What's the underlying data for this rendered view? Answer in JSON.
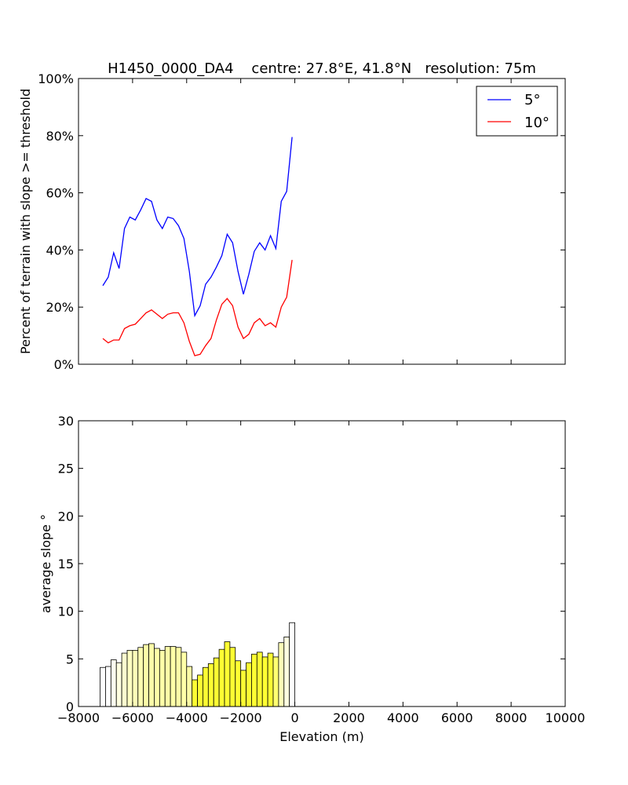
{
  "chart_data": [
    {
      "type": "line",
      "title": "H1450_0000_DA4    centre: 27.8°E, 41.8°N   resolution: 75m",
      "ylabel": "Percent of terrain with slope >= threshold",
      "xlim": [
        -8000,
        10000
      ],
      "ylim": [
        0,
        100
      ],
      "y_tick_labels": [
        "0%",
        "20%",
        "40%",
        "60%",
        "80%",
        "100%"
      ],
      "x_ticks": [
        -8000,
        -6000,
        -4000,
        -2000,
        0,
        2000,
        4000,
        6000,
        8000,
        10000
      ],
      "y_ticks": [
        0,
        20,
        40,
        60,
        80,
        100
      ],
      "legend_position": "top-right",
      "x": [
        -7100,
        -6900,
        -6700,
        -6500,
        -6300,
        -6100,
        -5900,
        -5700,
        -5500,
        -5300,
        -5100,
        -4900,
        -4700,
        -4500,
        -4300,
        -4100,
        -3900,
        -3700,
        -3500,
        -3300,
        -3100,
        -2900,
        -2700,
        -2500,
        -2300,
        -2100,
        -1900,
        -1700,
        -1500,
        -1300,
        -1100,
        -900,
        -700,
        -500,
        -300,
        -100
      ],
      "series": [
        {
          "name": "5°",
          "color": "#0000ff",
          "values": [
            27.5,
            30.5,
            39,
            33.5,
            47.5,
            51.5,
            50.5,
            54,
            58,
            57,
            50.5,
            47.5,
            51.5,
            51,
            48.5,
            44,
            32.5,
            17,
            20.5,
            28,
            30.5,
            34,
            38,
            45.5,
            42.5,
            32.5,
            24.5,
            31.5,
            39.5,
            42.5,
            40,
            45,
            40.5,
            57,
            60.5,
            79.5
          ]
        },
        {
          "name": "10°",
          "color": "#ff0000",
          "values": [
            9,
            7.5,
            8.5,
            8.5,
            12.5,
            13.5,
            14,
            16,
            18,
            19,
            17.5,
            16,
            17.5,
            18,
            18,
            14.5,
            8,
            3,
            3.5,
            6.5,
            9,
            15.5,
            21,
            23,
            20.5,
            13,
            9,
            10.5,
            14.5,
            16,
            13.5,
            14.5,
            13,
            20,
            23.5,
            36.5
          ]
        }
      ]
    },
    {
      "type": "bar",
      "xlabel": "Elevation (m)",
      "ylabel": "average slope °",
      "xlim": [
        -8000,
        10000
      ],
      "ylim": [
        0,
        30
      ],
      "x_ticks": [
        -8000,
        -6000,
        -4000,
        -2000,
        0,
        2000,
        4000,
        6000,
        8000,
        10000
      ],
      "y_ticks": [
        0,
        5,
        10,
        15,
        20,
        25,
        30
      ],
      "bar_width": 200,
      "x": [
        -7100,
        -6900,
        -6700,
        -6500,
        -6300,
        -6100,
        -5900,
        -5700,
        -5500,
        -5300,
        -5100,
        -4900,
        -4700,
        -4500,
        -4300,
        -4100,
        -3900,
        -3700,
        -3500,
        -3300,
        -3100,
        -2900,
        -2700,
        -2500,
        -2300,
        -2100,
        -1900,
        -1700,
        -1500,
        -1300,
        -1100,
        -900,
        -700,
        -500,
        -300,
        -100
      ],
      "values": [
        4.1,
        4.2,
        4.9,
        4.6,
        5.6,
        5.9,
        5.9,
        6.2,
        6.5,
        6.6,
        6.1,
        5.9,
        6.3,
        6.3,
        6.2,
        5.7,
        4.2,
        2.8,
        3.3,
        4.1,
        4.5,
        5.1,
        6.0,
        6.8,
        6.2,
        4.8,
        3.8,
        4.6,
        5.5,
        5.7,
        5.2,
        5.6,
        5.2,
        6.7,
        7.3,
        8.8
      ],
      "colors": [
        "#ffffff",
        "#ffffff",
        "#fffff0",
        "#ffffe0",
        "#ffffd0",
        "#ffffc2",
        "#ffffb9",
        "#ffffb0",
        "#ffffa8",
        "#ffffa8",
        "#ffffa8",
        "#ffffa8",
        "#ffffa8",
        "#ffffa8",
        "#ffffa8",
        "#ffffa8",
        "#ffffa8",
        "#ffff33",
        "#ffff33",
        "#ffff33",
        "#ffff33",
        "#ffff33",
        "#ffff33",
        "#ffff33",
        "#ffff33",
        "#ffff33",
        "#ffff33",
        "#ffff33",
        "#ffff33",
        "#ffff33",
        "#ffff33",
        "#ffff33",
        "#ffff70",
        "#ffffb8",
        "#ffffe0",
        "#ffffff"
      ]
    }
  ]
}
